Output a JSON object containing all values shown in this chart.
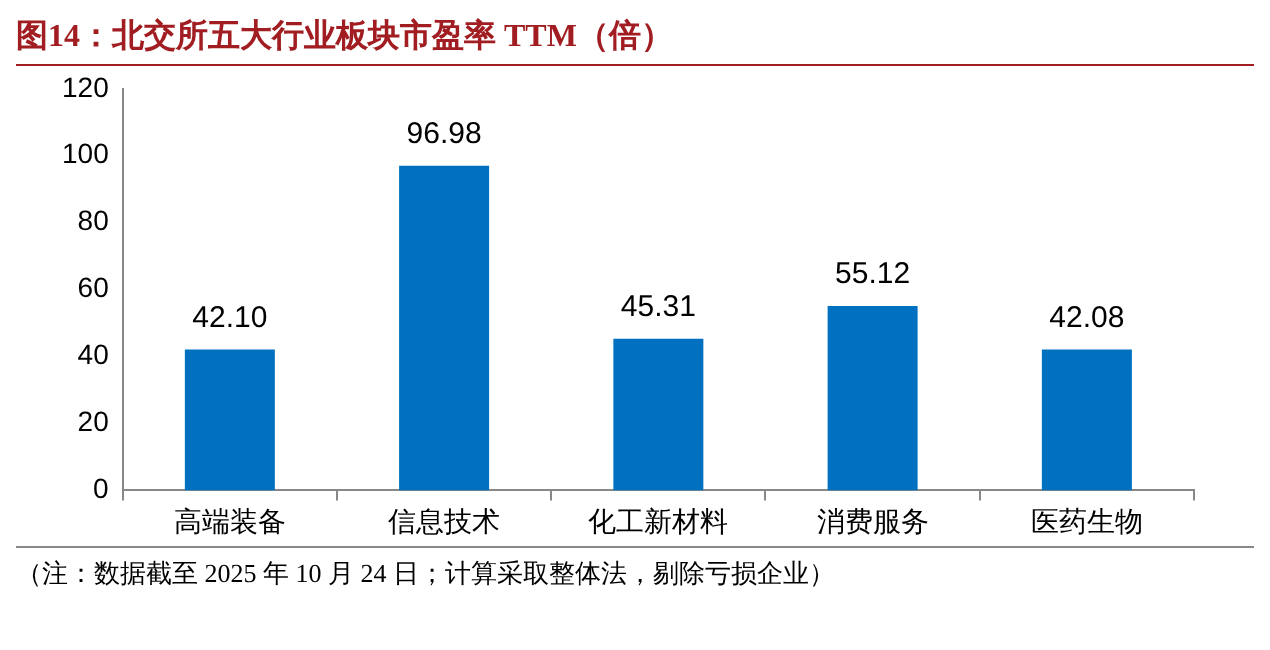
{
  "chart_data": {
    "type": "bar",
    "title": "图14：北交所五大行业板块市盈率 TTM（倍）",
    "categories": [
      "高端装备",
      "信息技术",
      "化工新材料",
      "消费服务",
      "医药生物"
    ],
    "values": [
      42.1,
      96.98,
      45.31,
      55.12,
      42.08
    ],
    "value_labels": [
      "42.10",
      "96.98",
      "45.31",
      "55.12",
      "42.08"
    ],
    "color": "#0070c0",
    "ylim": [
      0,
      120
    ],
    "yticks": [
      0,
      20,
      40,
      60,
      80,
      100,
      120
    ],
    "grid": false,
    "legend": false,
    "annotations": [
      "（注：数据截至 2025 年 10 月 24 日；计算采取整体法，剔除亏损企业）"
    ]
  }
}
